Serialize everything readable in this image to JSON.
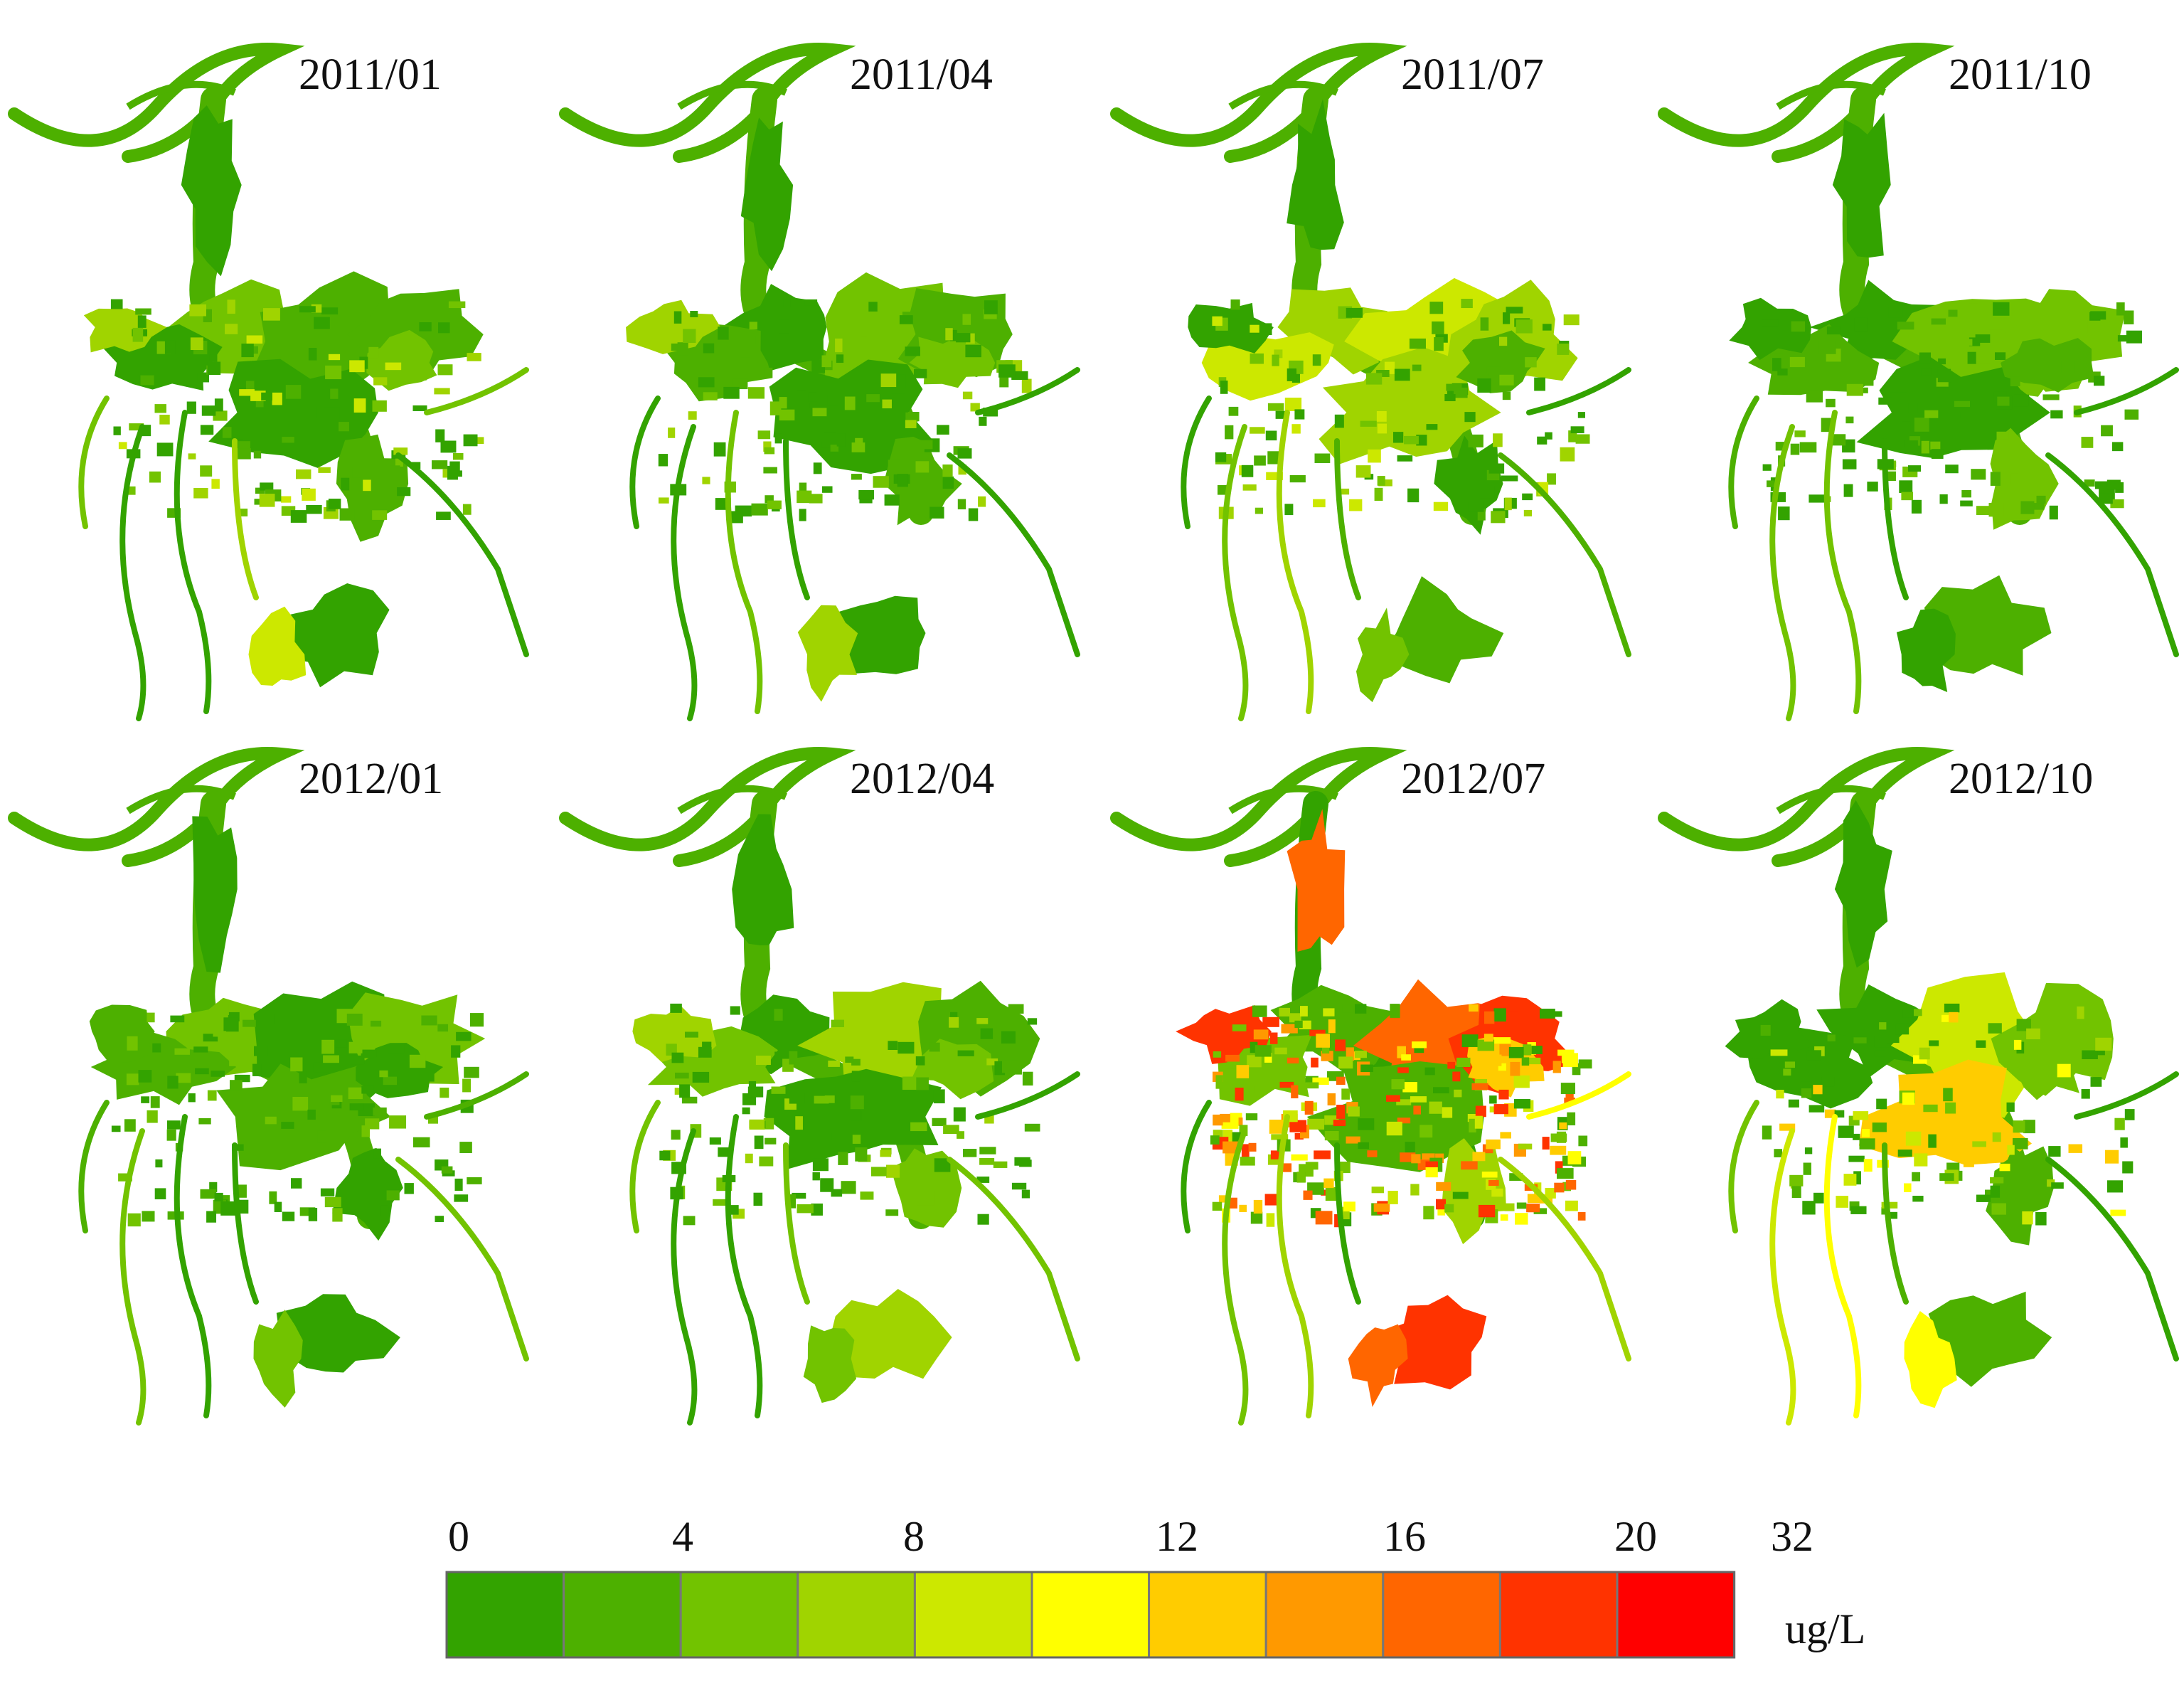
{
  "figure": {
    "panels": [
      {
        "label": "2011/01",
        "year": 2011,
        "month": "01",
        "palette_level": 3
      },
      {
        "label": "2011/04",
        "year": 2011,
        "month": "04",
        "palette_level": 2
      },
      {
        "label": "2011/07",
        "year": 2011,
        "month": "07",
        "palette_level": 3
      },
      {
        "label": "2011/10",
        "year": 2011,
        "month": "10",
        "palette_level": 1
      },
      {
        "label": "2012/01",
        "year": 2012,
        "month": "01",
        "palette_level": 1
      },
      {
        "label": "2012/04",
        "year": 2012,
        "month": "04",
        "palette_level": 2
      },
      {
        "label": "2012/07",
        "year": 2012,
        "month": "07",
        "palette_level": 8
      },
      {
        "label": "2012/10",
        "year": 2012,
        "month": "10",
        "palette_level": 5
      }
    ]
  },
  "legend": {
    "unit": "ug/L",
    "tick_labels": [
      "0",
      "4",
      "8",
      "12",
      "16",
      "20",
      "32"
    ],
    "colors": [
      "#33a300",
      "#4db000",
      "#72c300",
      "#a0d400",
      "#cce800",
      "#ffff00",
      "#ffcc00",
      "#ff9900",
      "#ff6600",
      "#ff3300",
      "#ff0000"
    ]
  }
}
